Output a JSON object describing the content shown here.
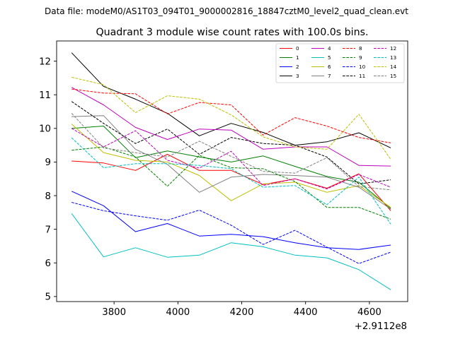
{
  "chart_data": {
    "type": "line",
    "suptitle": "Data file: modeM0/AS1T03_094T01_9000002816_18847cztM0_level2_quad_clean.evt",
    "title": "Quadrant 3 module wise count rates with 100.0s bins.",
    "xlabel": "",
    "ylabel": "",
    "x_offset_label": "+2.9112e8",
    "xlim": [
      3620,
      4720
    ],
    "ylim": [
      4.85,
      12.6
    ],
    "xticks": [
      3800,
      4000,
      4200,
      4400,
      4600
    ],
    "xtick_labels": [
      "3800",
      "4000",
      "4200",
      "4400",
      "4600"
    ],
    "yticks": [
      5,
      6,
      7,
      8,
      9,
      10,
      11,
      12
    ],
    "ytick_labels": [
      "5",
      "6",
      "7",
      "8",
      "9",
      "10",
      "11",
      "12"
    ],
    "legend_position": "upper right",
    "x": [
      3667,
      3767,
      3867,
      3967,
      4067,
      4167,
      4267,
      4367,
      4467,
      4567,
      4667
    ],
    "series": [
      {
        "name": "0",
        "color": "#ff0000",
        "style": "solid",
        "values": [
          9.03,
          8.97,
          8.75,
          9.23,
          8.75,
          8.75,
          8.33,
          8.5,
          8.22,
          8.65,
          7.55
        ]
      },
      {
        "name": "1",
        "color": "#008000",
        "style": "solid",
        "values": [
          10.0,
          10.07,
          9.13,
          9.33,
          9.15,
          9.0,
          9.18,
          8.87,
          8.57,
          8.4,
          7.62
        ]
      },
      {
        "name": "2",
        "color": "#0000ff",
        "style": "solid",
        "values": [
          8.13,
          7.7,
          6.93,
          7.17,
          6.8,
          6.85,
          6.78,
          6.6,
          6.45,
          6.4,
          6.53
        ]
      },
      {
        "name": "3",
        "color": "#000000",
        "style": "solid",
        "values": [
          12.25,
          11.25,
          10.87,
          10.45,
          9.78,
          10.15,
          9.88,
          9.5,
          9.6,
          9.87,
          9.42
        ]
      },
      {
        "name": "4",
        "color": "#bf00bf",
        "style": "solid",
        "values": [
          11.22,
          10.7,
          10.03,
          9.67,
          9.98,
          9.95,
          9.38,
          9.45,
          9.45,
          8.9,
          8.88
        ]
      },
      {
        "name": "5",
        "color": "#00bfbf",
        "style": "solid",
        "values": [
          7.47,
          6.18,
          6.45,
          6.17,
          6.23,
          6.6,
          6.48,
          6.23,
          6.15,
          5.8,
          5.2
        ]
      },
      {
        "name": "6",
        "color": "#bfbf00",
        "style": "solid",
        "values": [
          10.13,
          9.28,
          9.05,
          9.0,
          8.6,
          7.85,
          8.35,
          8.4,
          8.1,
          8.3,
          7.65
        ]
      },
      {
        "name": "7",
        "color": "#808080",
        "style": "solid",
        "values": [
          10.35,
          10.38,
          9.38,
          8.93,
          8.1,
          8.55,
          8.63,
          8.6,
          8.55,
          8.25,
          7.6
        ]
      },
      {
        "name": "8",
        "color": "#ff0000",
        "style": "dashed",
        "values": [
          11.17,
          11.05,
          11.03,
          10.43,
          10.77,
          10.7,
          9.8,
          10.32,
          10.07,
          9.73,
          9.57
        ]
      },
      {
        "name": "9",
        "color": "#008000",
        "style": "dashed",
        "values": [
          9.35,
          9.45,
          9.15,
          8.28,
          9.2,
          8.83,
          8.8,
          8.42,
          7.65,
          7.65,
          7.3
        ]
      },
      {
        "name": "10",
        "color": "#0000ff",
        "style": "dashed",
        "values": [
          7.8,
          7.55,
          7.4,
          7.27,
          7.57,
          7.12,
          6.55,
          6.97,
          6.47,
          5.98,
          6.32
        ]
      },
      {
        "name": "11",
        "color": "#000000",
        "style": "dashed",
        "values": [
          10.8,
          10.15,
          9.55,
          9.98,
          9.23,
          9.73,
          9.55,
          9.5,
          9.15,
          8.35,
          8.47
        ]
      },
      {
        "name": "12",
        "color": "#bf00bf",
        "style": "dashed",
        "values": [
          10.0,
          9.45,
          9.93,
          9.05,
          8.82,
          9.32,
          8.3,
          8.5,
          8.2,
          8.63,
          8.25
        ]
      },
      {
        "name": "13",
        "color": "#00bfbf",
        "style": "dashed",
        "values": [
          9.72,
          8.83,
          8.95,
          8.95,
          8.9,
          8.8,
          8.25,
          8.3,
          7.73,
          8.55,
          7.15
        ]
      },
      {
        "name": "14",
        "color": "#bfbf00",
        "style": "dashed",
        "values": [
          11.52,
          11.3,
          10.47,
          10.97,
          10.87,
          10.4,
          9.75,
          9.45,
          9.38,
          10.42,
          9.08
        ]
      },
      {
        "name": "15",
        "color": "#808080",
        "style": "dashed",
        "values": [
          10.45,
          9.42,
          9.28,
          9.15,
          9.62,
          9.17,
          8.72,
          8.67,
          9.13,
          8.27,
          8.17
        ]
      }
    ]
  }
}
